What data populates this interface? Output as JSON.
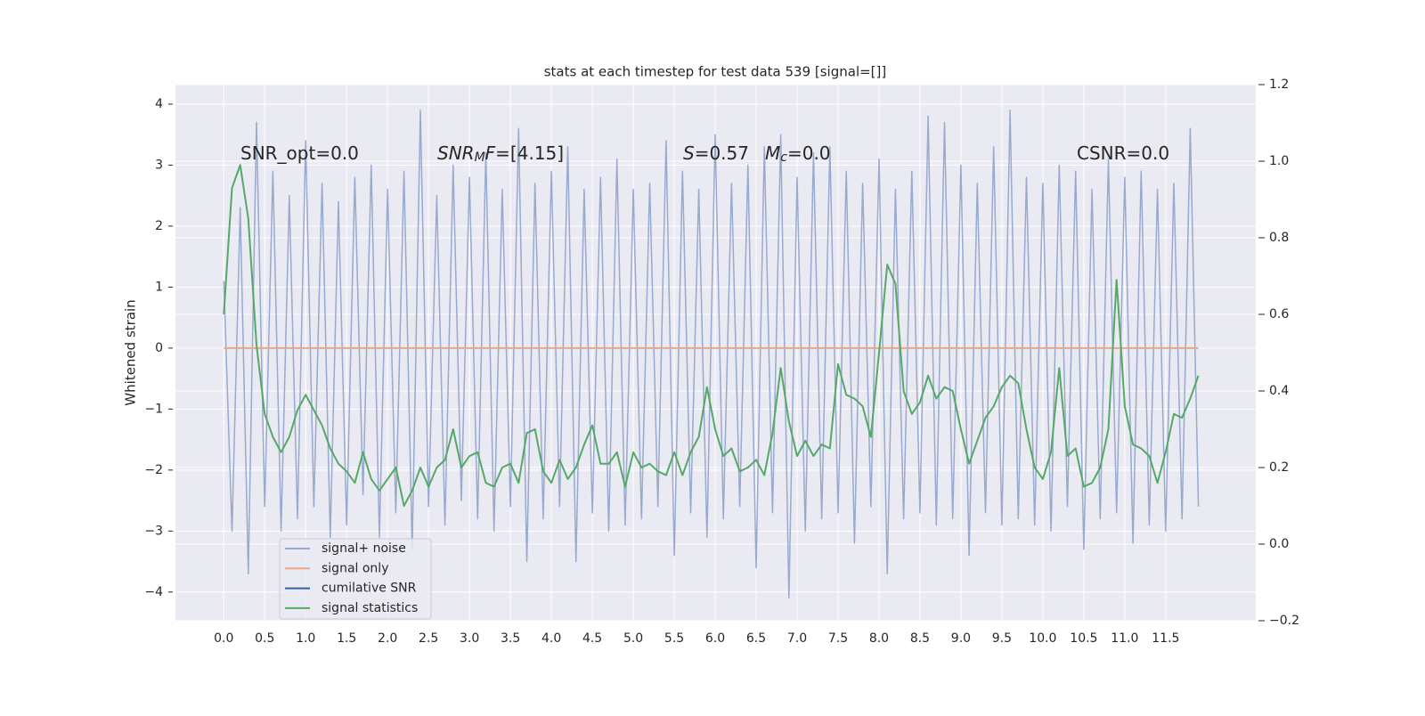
{
  "chart_data": {
    "type": "line",
    "title": "stats at each timestep for test data 539 [signal=[]]",
    "ylabel": "Whitened strain",
    "x": [
      0.0,
      0.1,
      0.2,
      0.3,
      0.4,
      0.5,
      0.6,
      0.7,
      0.8,
      0.9,
      1.0,
      1.1,
      1.2,
      1.3,
      1.4,
      1.5,
      1.6,
      1.7,
      1.8,
      1.9,
      2.0,
      2.1,
      2.2,
      2.3,
      2.4,
      2.5,
      2.6,
      2.7,
      2.8,
      2.9,
      3.0,
      3.1,
      3.2,
      3.3,
      3.4,
      3.5,
      3.6,
      3.7,
      3.8,
      3.9,
      4.0,
      4.1,
      4.2,
      4.3,
      4.4,
      4.5,
      4.6,
      4.7,
      4.8,
      4.9,
      5.0,
      5.1,
      5.2,
      5.3,
      5.4,
      5.5,
      5.6,
      5.7,
      5.8,
      5.9,
      6.0,
      6.1,
      6.2,
      6.3,
      6.4,
      6.5,
      6.6,
      6.7,
      6.8,
      6.9,
      7.0,
      7.1,
      7.2,
      7.3,
      7.4,
      7.5,
      7.6,
      7.7,
      7.8,
      7.9,
      8.0,
      8.1,
      8.2,
      8.3,
      8.4,
      8.5,
      8.6,
      8.7,
      8.8,
      8.9,
      9.0,
      9.1,
      9.2,
      9.3,
      9.4,
      9.5,
      9.6,
      9.7,
      9.8,
      9.9,
      10.0,
      10.1,
      10.2,
      10.3,
      10.4,
      10.5,
      10.6,
      10.7,
      10.8,
      10.9,
      11.0,
      11.1,
      11.2,
      11.3,
      11.4,
      11.5,
      11.6,
      11.7,
      11.8,
      11.9
    ],
    "series": [
      {
        "name": "signal+ noise",
        "color": "#99a9cf",
        "axis": "y",
        "values": [
          1.1,
          -3.0,
          2.3,
          -3.7,
          3.7,
          -2.6,
          2.9,
          -3.0,
          2.5,
          -2.8,
          3.4,
          -2.6,
          2.7,
          -3.1,
          2.4,
          -2.9,
          2.8,
          -2.4,
          3.0,
          -3.1,
          2.6,
          -2.7,
          2.9,
          -3.3,
          3.9,
          -2.6,
          2.5,
          -2.9,
          3.0,
          -2.5,
          2.8,
          -2.8,
          3.2,
          -3.0,
          2.6,
          -2.6,
          3.6,
          -3.5,
          2.7,
          -2.8,
          2.9,
          -2.6,
          3.3,
          -3.5,
          2.6,
          -2.7,
          2.8,
          -3.0,
          3.1,
          -2.9,
          2.6,
          -2.8,
          2.7,
          -2.6,
          3.4,
          -3.4,
          2.9,
          -2.7,
          2.6,
          -3.1,
          3.5,
          -2.8,
          2.7,
          -2.6,
          3.0,
          -3.6,
          3.3,
          -2.7,
          3.5,
          -4.1,
          2.8,
          -3.0,
          3.2,
          -2.8,
          3.3,
          -2.7,
          2.9,
          -3.2,
          2.7,
          -2.6,
          3.1,
          -3.7,
          2.6,
          -2.8,
          2.9,
          -2.7,
          3.8,
          -2.9,
          3.7,
          -2.8,
          3.0,
          -3.4,
          2.7,
          -2.7,
          3.3,
          -2.9,
          3.9,
          -2.8,
          2.8,
          -2.9,
          2.7,
          -3.0,
          3.0,
          -2.6,
          2.9,
          -3.3,
          2.6,
          -2.8,
          3.1,
          -2.7,
          2.8,
          -3.2,
          2.9,
          -2.9,
          2.6,
          -3.0,
          2.7,
          -2.8,
          3.6,
          -2.6
        ]
      },
      {
        "name": "signal only",
        "color": "#e6a98c",
        "axis": "y",
        "values": [
          0,
          0,
          0,
          0,
          0,
          0,
          0,
          0,
          0,
          0,
          0,
          0,
          0,
          0,
          0,
          0,
          0,
          0,
          0,
          0,
          0,
          0,
          0,
          0,
          0,
          0,
          0,
          0,
          0,
          0,
          0,
          0,
          0,
          0,
          0,
          0,
          0,
          0,
          0,
          0,
          0,
          0,
          0,
          0,
          0,
          0,
          0,
          0,
          0,
          0,
          0,
          0,
          0,
          0,
          0,
          0,
          0,
          0,
          0,
          0,
          0,
          0,
          0,
          0,
          0,
          0,
          0,
          0,
          0,
          0,
          0,
          0,
          0,
          0,
          0,
          0,
          0,
          0,
          0,
          0,
          0,
          0,
          0,
          0,
          0,
          0,
          0,
          0,
          0,
          0,
          0,
          0,
          0,
          0,
          0,
          0,
          0,
          0,
          0,
          0,
          0,
          0,
          0,
          0,
          0,
          0,
          0,
          0,
          0,
          0,
          0,
          0,
          0,
          0,
          0,
          0,
          0,
          0,
          0,
          0
        ]
      },
      {
        "name": "cumilative SNR",
        "color": "#3b5ea0",
        "axis": "y",
        "values": [
          null,
          null,
          null,
          null,
          null,
          null,
          null,
          null,
          null,
          null,
          null,
          null,
          null,
          null,
          null,
          null,
          null,
          null,
          null,
          null,
          null,
          null,
          null,
          null,
          null,
          null,
          null,
          null,
          null,
          null,
          null,
          null,
          null,
          null,
          null,
          null,
          null,
          null,
          null,
          null,
          null,
          null,
          null,
          null,
          null,
          null,
          null,
          null,
          null,
          null,
          null,
          null,
          null,
          null,
          null,
          null,
          null,
          null,
          null,
          null,
          null,
          null,
          null,
          null,
          null,
          null,
          null,
          null,
          null,
          null,
          null,
          null,
          null,
          null,
          null,
          null,
          null,
          null,
          null,
          null,
          null,
          null,
          null,
          null,
          null,
          null,
          null,
          null,
          null,
          null,
          null,
          null,
          null,
          null,
          null,
          null,
          null,
          null,
          null,
          null,
          null,
          null,
          null,
          null,
          null,
          null,
          null,
          null,
          null,
          null,
          null,
          null,
          null,
          null,
          null,
          null,
          null,
          null,
          null,
          null
        ]
      },
      {
        "name": "signal statistics",
        "color": "#55a868",
        "axis": "y2",
        "values": [
          0.6,
          0.93,
          0.99,
          0.85,
          0.52,
          0.34,
          0.28,
          0.24,
          0.28,
          0.35,
          0.39,
          0.35,
          0.31,
          0.25,
          0.21,
          0.19,
          0.16,
          0.24,
          0.17,
          0.14,
          0.17,
          0.2,
          0.1,
          0.14,
          0.2,
          0.15,
          0.2,
          0.22,
          0.3,
          0.2,
          0.23,
          0.24,
          0.16,
          0.15,
          0.2,
          0.21,
          0.16,
          0.29,
          0.3,
          0.19,
          0.16,
          0.22,
          0.17,
          0.2,
          0.26,
          0.31,
          0.21,
          0.21,
          0.24,
          0.15,
          0.24,
          0.2,
          0.21,
          0.19,
          0.18,
          0.24,
          0.18,
          0.24,
          0.28,
          0.41,
          0.3,
          0.23,
          0.25,
          0.19,
          0.2,
          0.22,
          0.18,
          0.29,
          0.46,
          0.32,
          0.23,
          0.27,
          0.23,
          0.26,
          0.25,
          0.47,
          0.39,
          0.38,
          0.36,
          0.28,
          0.5,
          0.73,
          0.68,
          0.4,
          0.34,
          0.37,
          0.44,
          0.38,
          0.41,
          0.4,
          0.3,
          0.21,
          0.27,
          0.33,
          0.36,
          0.41,
          0.44,
          0.42,
          0.3,
          0.2,
          0.17,
          0.24,
          0.46,
          0.23,
          0.25,
          0.15,
          0.16,
          0.2,
          0.3,
          0.69,
          0.36,
          0.26,
          0.25,
          0.23,
          0.16,
          0.24,
          0.34,
          0.33,
          0.38,
          0.44
        ]
      }
    ],
    "xlim": [
      -0.59,
      12.6
    ],
    "xticks": [
      {
        "value": 0,
        "label": "0.0"
      },
      0.5,
      {
        "value": 1,
        "label": "1.0"
      },
      1.5,
      {
        "value": 2,
        "label": "2.0"
      },
      2.5,
      {
        "value": 3,
        "label": "3.0"
      },
      3.5,
      {
        "value": 4,
        "label": "4.0"
      },
      4.5,
      {
        "value": 5,
        "label": "5.0"
      },
      5.5,
      {
        "value": 6,
        "label": "6.0"
      },
      6.5,
      {
        "value": 7,
        "label": "7.0"
      },
      7.5,
      {
        "value": 8,
        "label": "8.0"
      },
      8.5,
      {
        "value": 9,
        "label": "9.0"
      },
      9.5,
      {
        "value": 10,
        "label": "10.0"
      },
      10.5,
      {
        "value": 11,
        "label": "11.0"
      },
      11.5
    ],
    "ylim": [
      -4.47,
      4.32
    ],
    "yticks": [
      {
        "value": -4,
        "label": "−4"
      },
      {
        "value": -3,
        "label": "−3"
      },
      {
        "value": -2,
        "label": "−2"
      },
      {
        "value": -1,
        "label": "−1"
      },
      0,
      1,
      2,
      3,
      4
    ],
    "y2lim": [
      -0.2,
      1.2
    ],
    "y2ticks": [
      {
        "value": -0.2,
        "label": "−0.2"
      },
      {
        "value": 0,
        "label": "0.0"
      },
      0.2,
      0.4,
      0.6,
      0.8,
      {
        "value": 1,
        "label": "1.0"
      },
      1.2
    ],
    "grid": true,
    "legend": "lower left",
    "annotations": [
      [
        {
          "text": "SNR_opt=0.0"
        }
      ],
      [
        {
          "text": "SNR",
          "italic": true
        },
        {
          "text": "M",
          "italic": true,
          "sub": true
        },
        {
          "text": "F",
          "italic": true
        },
        {
          "text": "=[4.15]"
        }
      ],
      [
        {
          "text": "S",
          "italic": true
        },
        {
          "text": "=0.57"
        }
      ],
      [
        {
          "text": "M",
          "italic": true
        },
        {
          "text": "c",
          "italic": true,
          "sub": true
        },
        {
          "text": "=0.0"
        }
      ],
      [
        {
          "text": "CSNR=0.0"
        }
      ]
    ]
  }
}
